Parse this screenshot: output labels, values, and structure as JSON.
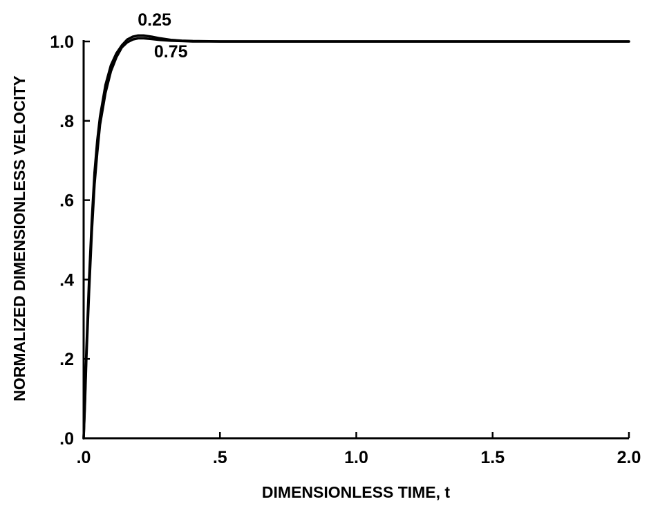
{
  "chart_data": {
    "type": "line",
    "title": "",
    "xlabel": "DIMENSIONLESS TIME, t",
    "ylabel": "NORMALIZED DIMENSIONLESS VELOCITY",
    "xlim": [
      0,
      2.0
    ],
    "ylim": [
      0,
      1.0
    ],
    "grid": false,
    "x_ticks": [
      0,
      0.5,
      1.0,
      1.5,
      2.0
    ],
    "x_tick_labels": [
      ".0",
      ".5",
      "1.0",
      "1.5",
      "2.0"
    ],
    "y_ticks": [
      0,
      0.2,
      0.4,
      0.6,
      0.8,
      1.0
    ],
    "y_tick_labels": [
      ".0",
      ".2",
      ".4",
      ".6",
      ".8",
      "1.0"
    ],
    "annotations": [
      {
        "text": "0.25",
        "x": 0.26,
        "y": 1.04
      },
      {
        "text": "0.75",
        "x": 0.32,
        "y": 0.96
      }
    ],
    "series": [
      {
        "x": [
          0,
          0.005,
          0.01,
          0.02,
          0.03,
          0.04,
          0.05,
          0.06,
          0.08,
          0.1,
          0.12,
          0.14,
          0.16,
          0.18,
          0.2,
          0.22,
          0.25,
          0.28,
          0.32,
          0.36,
          0.4,
          0.5,
          0.75,
          1.0,
          1.25,
          1.5,
          1.75,
          2.0
        ],
        "y": [
          0,
          0.1,
          0.22,
          0.4,
          0.55,
          0.67,
          0.75,
          0.81,
          0.89,
          0.94,
          0.97,
          0.99,
          1.005,
          1.012,
          1.015,
          1.015,
          1.012,
          1.008,
          1.004,
          1.002,
          1.001,
          1.0,
          1.0,
          1.0,
          1.0,
          1.0,
          1.0,
          1.0
        ]
      },
      {
        "x": [
          0,
          0.005,
          0.01,
          0.02,
          0.03,
          0.04,
          0.05,
          0.06,
          0.08,
          0.1,
          0.12,
          0.14,
          0.16,
          0.18,
          0.2,
          0.22,
          0.25,
          0.28,
          0.32,
          0.36,
          0.4,
          0.5,
          0.75,
          1.0,
          1.25,
          1.5,
          1.75,
          2.0
        ],
        "y": [
          0,
          0.09,
          0.2,
          0.37,
          0.52,
          0.64,
          0.72,
          0.79,
          0.87,
          0.925,
          0.96,
          0.985,
          0.998,
          1.005,
          1.008,
          1.008,
          1.006,
          1.004,
          1.002,
          1.001,
          1.0,
          1.0,
          1.0,
          1.0,
          1.0,
          1.0,
          1.0,
          1.0
        ]
      }
    ]
  }
}
